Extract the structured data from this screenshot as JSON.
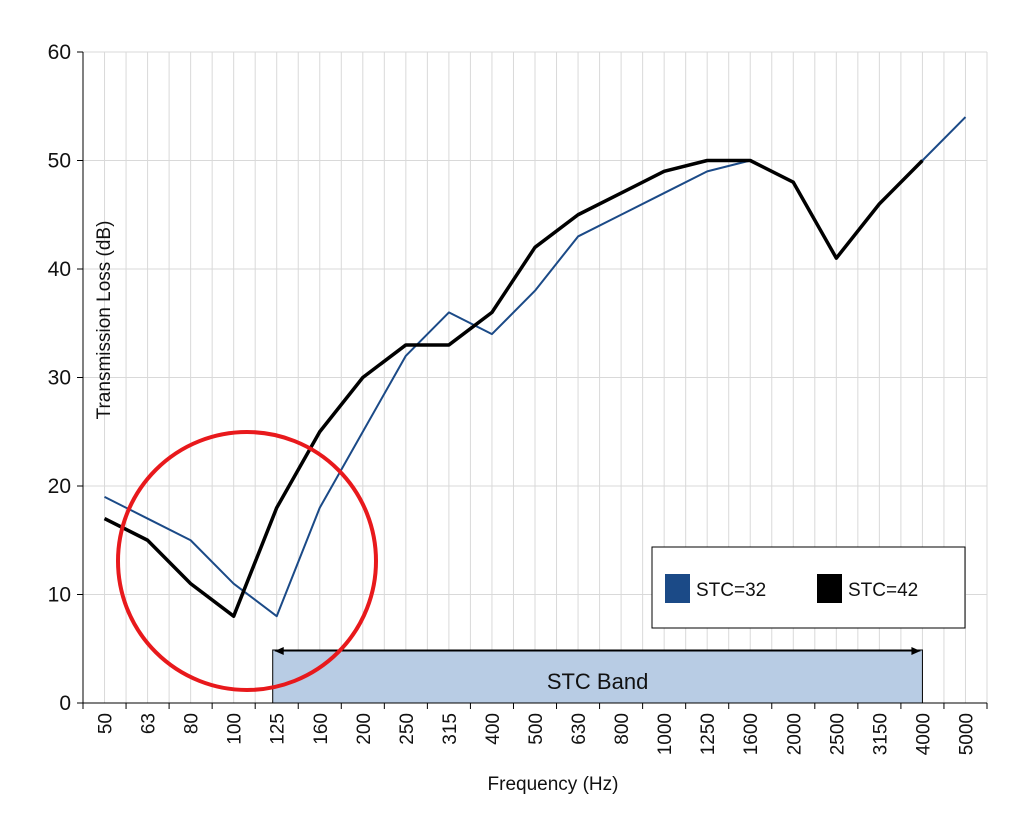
{
  "chart_data": {
    "type": "line",
    "x_label": "Frequency (Hz)",
    "y_label": "Transmission Loss (dB)",
    "categories": [
      "50",
      "63",
      "80",
      "100",
      "125",
      "160",
      "200",
      "250",
      "315",
      "400",
      "500",
      "630",
      "800",
      "1000",
      "1250",
      "1600",
      "2000",
      "2500",
      "3150",
      "4000",
      "5000"
    ],
    "series": [
      {
        "name": "STC=32",
        "color": "#1b4a87",
        "values": [
          19,
          17,
          15,
          11,
          8,
          18,
          25,
          32,
          36,
          34,
          38,
          43,
          45,
          47,
          49,
          50,
          48,
          41,
          46,
          50,
          54
        ]
      },
      {
        "name": "STC=42",
        "color": "#000000",
        "values": [
          17,
          15,
          11,
          8,
          18,
          25,
          30,
          33,
          33,
          36,
          42,
          45,
          47,
          49,
          50,
          50,
          48,
          41,
          46,
          50,
          null
        ]
      }
    ],
    "ylim": [
      0,
      60
    ],
    "yticks": [
      0,
      10,
      20,
      30,
      40,
      50,
      60
    ],
    "grid": true,
    "band": {
      "label": "STC Band",
      "from": "125",
      "to": "4000"
    }
  }
}
